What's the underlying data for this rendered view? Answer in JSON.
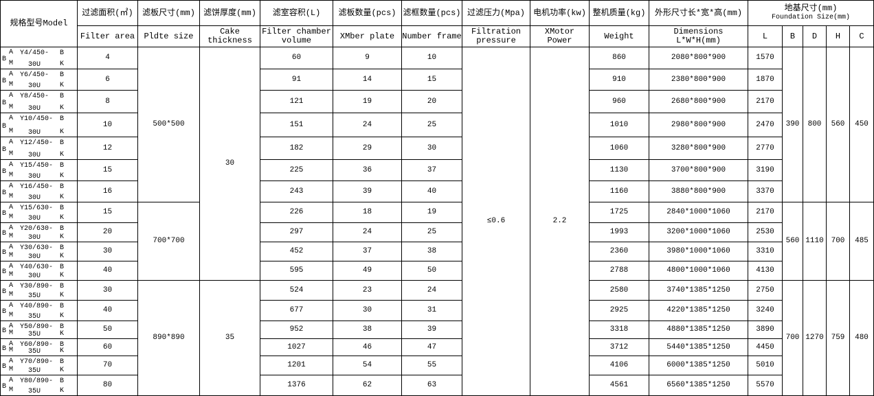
{
  "table": {
    "columns": [
      {
        "zh": "规格型号Model"
      },
      {
        "zh": "过滤面积(㎡)",
        "en": "Filter area"
      },
      {
        "zh": "滤板尺寸(mm)",
        "en": "Pldte size"
      },
      {
        "zh": "滤饼厚度(mm)",
        "en": "Cake thickness"
      },
      {
        "zh": "滤室容积(L)",
        "en": "Filter chamber volume"
      },
      {
        "zh": "滤板数量(pcs)",
        "en": "XMber plate"
      },
      {
        "zh": "滤框数量(pcs)",
        "en": "Number frame"
      },
      {
        "zh": "过滤压力(Mpa)",
        "en": "Filtration pressure"
      },
      {
        "zh": "电机功率(kw)",
        "en": "XMotor Power"
      },
      {
        "zh": "整机质量(kg)",
        "en": "Weight"
      },
      {
        "zh": "外形尺寸长*宽*高(mm)",
        "en": "Dimensions L*W*H(mm)"
      }
    ],
    "foundation": {
      "zh": "地基尺寸(mm)",
      "en": "Foundation Size(mm)",
      "sub": [
        "L",
        "B",
        "D",
        "H",
        "C"
      ]
    },
    "model_marks": {
      "left": "B",
      "top": "A",
      "bottom": "M",
      "right_top": "B",
      "right_bottom": "K"
    },
    "rows": [
      {
        "code": "Y4/450-",
        "size": "30U",
        "area": 4,
        "volume": 60,
        "plates": 9,
        "frames": 10,
        "weight": 860,
        "dims": "2080*800*900",
        "L": 1570
      },
      {
        "code": "Y6/450-",
        "size": "30U",
        "area": 6,
        "volume": 91,
        "plates": 14,
        "frames": 15,
        "weight": 910,
        "dims": "2380*800*900",
        "L": 1870
      },
      {
        "code": "Y8/450-",
        "size": "30U",
        "area": 8,
        "volume": 121,
        "plates": 19,
        "frames": 20,
        "weight": 960,
        "dims": "2680*800*900",
        "L": 2170
      },
      {
        "code": "Y10/450-",
        "size": "30U",
        "area": 10,
        "volume": 151,
        "plates": 24,
        "frames": 25,
        "weight": 1010,
        "dims": "2980*800*900",
        "L": 2470
      },
      {
        "code": "Y12/450-",
        "size": "30U",
        "area": 12,
        "volume": 182,
        "plates": 29,
        "frames": 30,
        "weight": 1060,
        "dims": "3280*800*900",
        "L": 2770
      },
      {
        "code": "Y15/450-",
        "size": "30U",
        "area": 15,
        "volume": 225,
        "plates": 36,
        "frames": 37,
        "weight": 1130,
        "dims": "3700*800*900",
        "L": 3190
      },
      {
        "code": "Y16/450-",
        "size": "30U",
        "area": 16,
        "volume": 243,
        "plates": 39,
        "frames": 40,
        "weight": 1160,
        "dims": "3880*800*900",
        "L": 3370
      },
      {
        "code": "Y15/630-",
        "size": "30U",
        "area": 15,
        "volume": 226,
        "plates": 18,
        "frames": 19,
        "weight": 1725,
        "dims": "2840*1000*1060",
        "L": 2170
      },
      {
        "code": "Y20/630-",
        "size": "30U",
        "area": 20,
        "volume": 297,
        "plates": 24,
        "frames": 25,
        "weight": 1993,
        "dims": "3200*1000*1060",
        "L": 2530
      },
      {
        "code": "Y30/630-",
        "size": "30U",
        "area": 30,
        "volume": 452,
        "plates": 37,
        "frames": 38,
        "weight": 2360,
        "dims": "3980*1000*1060",
        "L": 3310
      },
      {
        "code": "Y40/630-",
        "size": "30U",
        "area": 40,
        "volume": 595,
        "plates": 49,
        "frames": 50,
        "weight": 2788,
        "dims": "4800*1000*1060",
        "L": 4130
      },
      {
        "code": "Y30/890-",
        "size": "35U",
        "area": 30,
        "volume": 524,
        "plates": 23,
        "frames": 24,
        "weight": 2580,
        "dims": "3740*1385*1250",
        "L": 2750
      },
      {
        "code": "Y40/890-",
        "size": "35U",
        "area": 40,
        "volume": 677,
        "plates": 30,
        "frames": 31,
        "weight": 2925,
        "dims": "4220*1385*1250",
        "L": 3240
      },
      {
        "code": "Y50/890-",
        "size": "35U",
        "area": 50,
        "volume": 952,
        "plates": 38,
        "frames": 39,
        "weight": 3318,
        "dims": "4880*1385*1250",
        "L": 3890
      },
      {
        "code": "Y60/890-",
        "size": "35U",
        "area": 60,
        "volume": 1027,
        "plates": 46,
        "frames": 47,
        "weight": 3712,
        "dims": "5440*1385*1250",
        "L": 4450
      },
      {
        "code": "Y70/890-",
        "size": "35U",
        "area": 70,
        "volume": 1201,
        "plates": 54,
        "frames": 55,
        "weight": 4106,
        "dims": "6000*1385*1250",
        "L": 5010
      },
      {
        "code": "Y80/890-",
        "size": "35U",
        "area": 80,
        "volume": 1376,
        "plates": 62,
        "frames": 63,
        "weight": 4561,
        "dims": "6560*1385*1250",
        "L": 5570
      }
    ],
    "groups": [
      {
        "rowspan": 7,
        "plate_size": "500*500",
        "B": 390,
        "D": 800,
        "H": 560,
        "C": 450
      },
      {
        "rowspan": 4,
        "plate_size": "700*700",
        "B": 560,
        "D": 1110,
        "H": 700,
        "C": 485
      },
      {
        "rowspan": 6,
        "plate_size": "890*890",
        "B": 700,
        "D": 1270,
        "H": 759,
        "C": 480
      }
    ],
    "cake_thickness": [
      {
        "rowspan": 11,
        "text": 30
      },
      {
        "rowspan": 6,
        "text": 35
      }
    ],
    "filtration_pressure": "≤0.6",
    "motor_power": 2.2
  }
}
